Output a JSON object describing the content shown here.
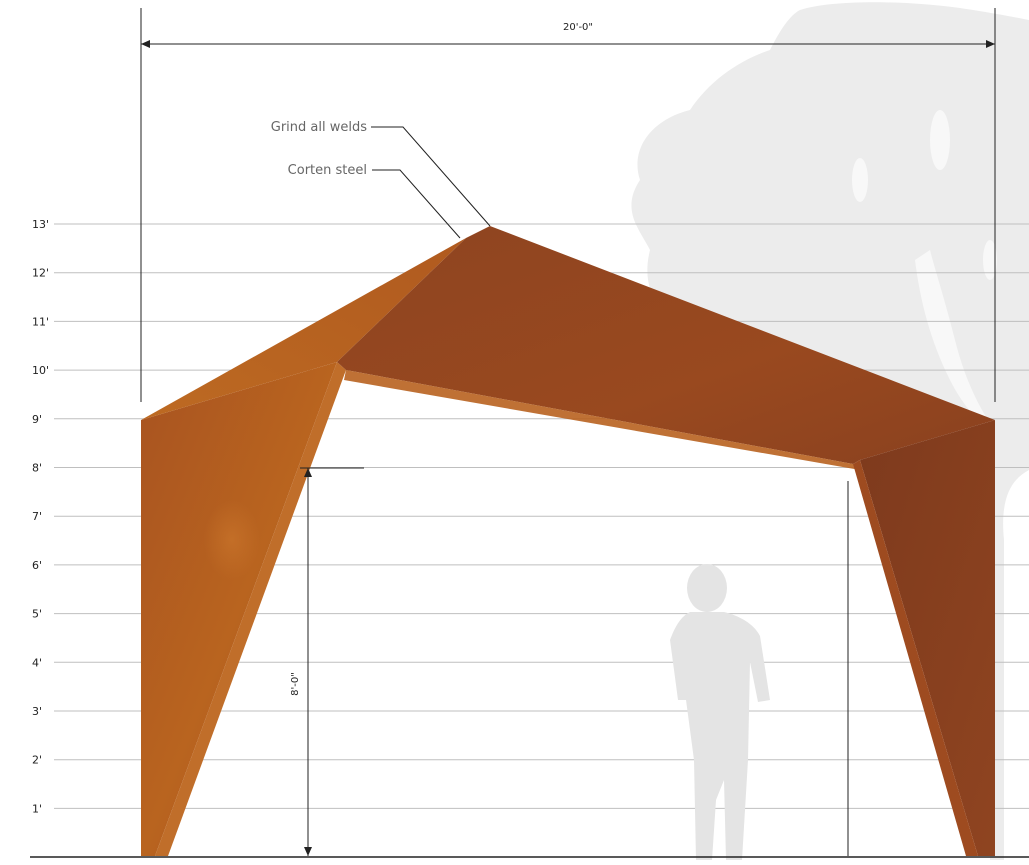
{
  "drawing": {
    "width_dimension": "20'-0\"",
    "opening_height_dimension": "8'-0\"",
    "callouts": {
      "grind_welds": "Grind all welds",
      "corten": "Corten steel"
    },
    "levels": [
      "13'",
      "12'",
      "11'",
      "10'",
      "9'",
      "8'",
      "7'",
      "6'",
      "5'",
      "4'",
      "3'",
      "2'",
      "1'"
    ]
  },
  "colors": {
    "steel_light": "#b8621f",
    "steel_mid": "#9a4d22",
    "steel_dark": "#7f3c1f",
    "steel_shadow": "#6e341b",
    "tree": "#ececec",
    "figure": "#e4e4e4",
    "grid_line": "#bfbfbf"
  },
  "icons": {
    "tree": "tree-silhouette-icon",
    "person": "person-silhouette-icon"
  }
}
